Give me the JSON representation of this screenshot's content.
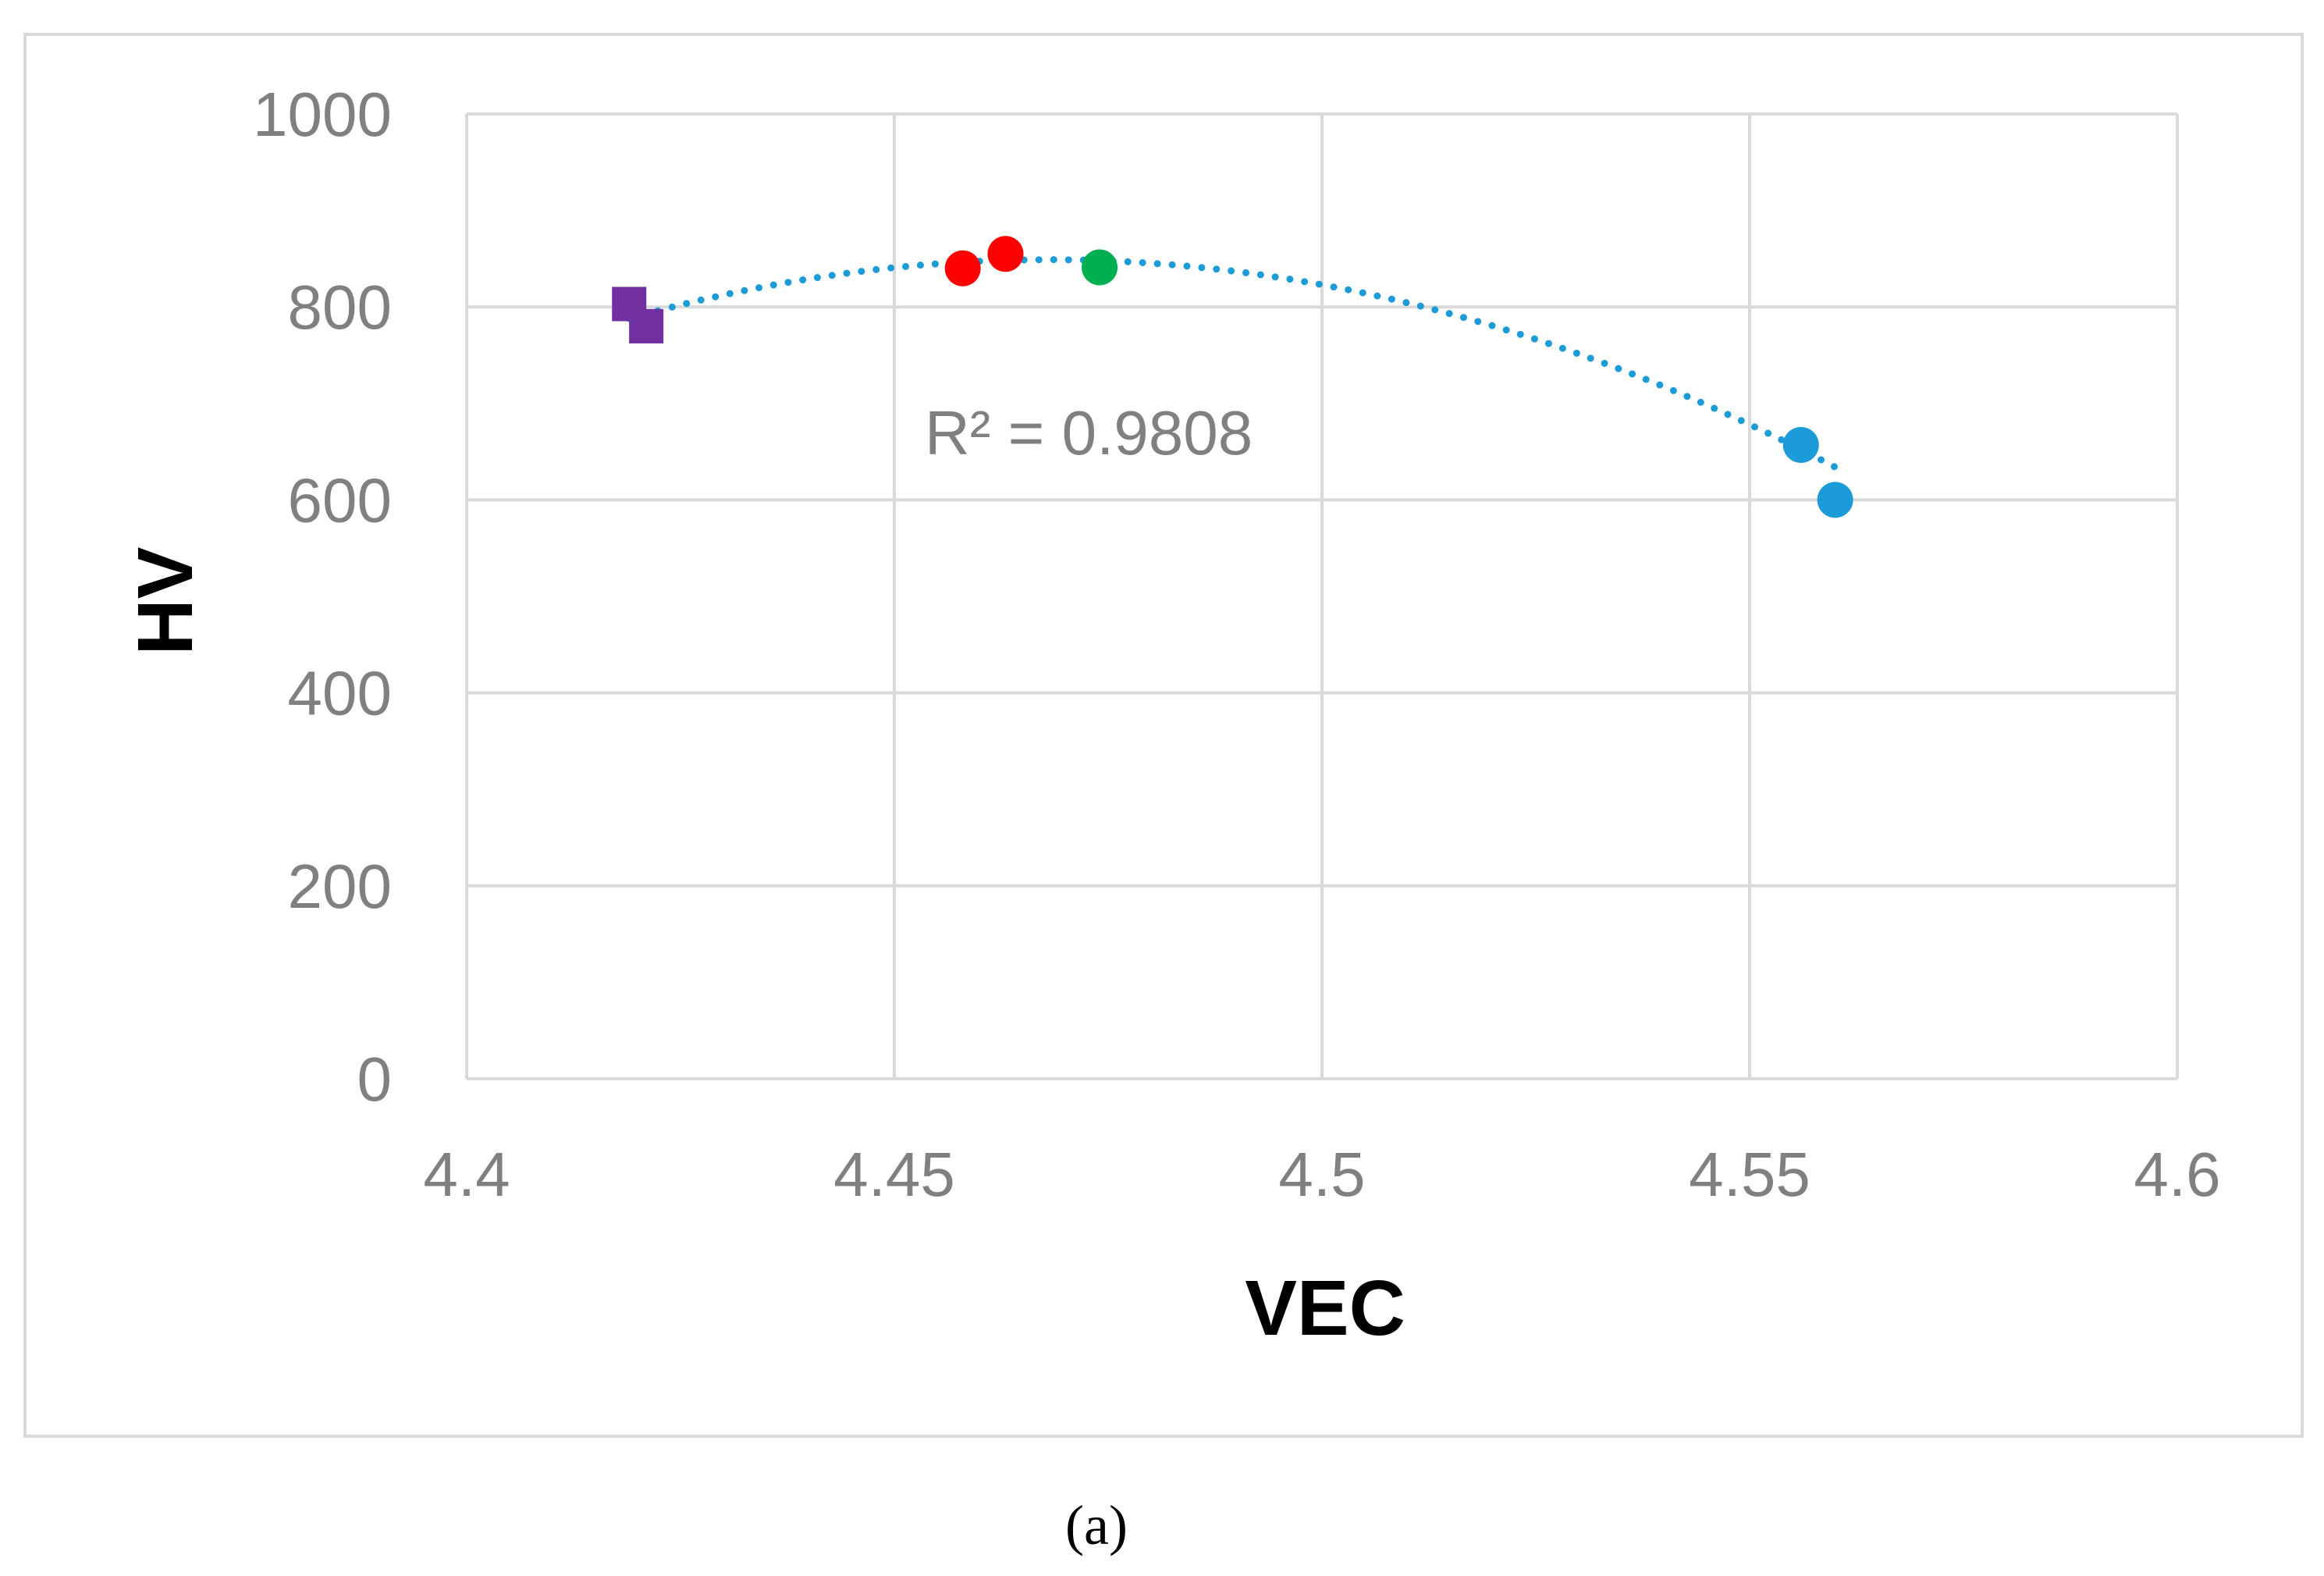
{
  "chart_data": {
    "type": "scatter",
    "title": "",
    "xlabel": "VEC",
    "ylabel": "HV",
    "xlim": [
      4.4,
      4.6
    ],
    "ylim": [
      0,
      1000
    ],
    "x_ticks": [
      4.4,
      4.45,
      4.5,
      4.55,
      4.6
    ],
    "x_tick_labels": [
      "4.4",
      "4.45",
      "4.5",
      "4.55",
      "4.6"
    ],
    "y_ticks": [
      0,
      200,
      400,
      600,
      800,
      1000
    ],
    "y_tick_labels": [
      "0",
      "200",
      "400",
      "600",
      "800",
      "1000"
    ],
    "grid": true,
    "series": [
      {
        "name": "purple",
        "marker": "square",
        "color": "#7030a0",
        "points": [
          {
            "x": 4.419,
            "y": 803
          },
          {
            "x": 4.421,
            "y": 780
          }
        ]
      },
      {
        "name": "red",
        "marker": "circle",
        "color": "#ff0000",
        "points": [
          {
            "x": 4.458,
            "y": 840
          },
          {
            "x": 4.463,
            "y": 855
          }
        ]
      },
      {
        "name": "green",
        "marker": "circle",
        "color": "#00b050",
        "points": [
          {
            "x": 4.474,
            "y": 841
          }
        ]
      },
      {
        "name": "blue",
        "marker": "circle",
        "color": "#1b9bd8",
        "points": [
          {
            "x": 4.556,
            "y": 657
          },
          {
            "x": 4.56,
            "y": 600
          }
        ]
      }
    ],
    "trendline": {
      "type": "polynomial-2",
      "style": "dotted",
      "color": "#1b9bd8",
      "x_range": [
        4.419,
        4.56
      ],
      "peak_x": 4.468,
      "peak_y": 849,
      "at_x_min": 788,
      "r_squared_label": "R² = 0.9808"
    },
    "caption": "(a)"
  }
}
